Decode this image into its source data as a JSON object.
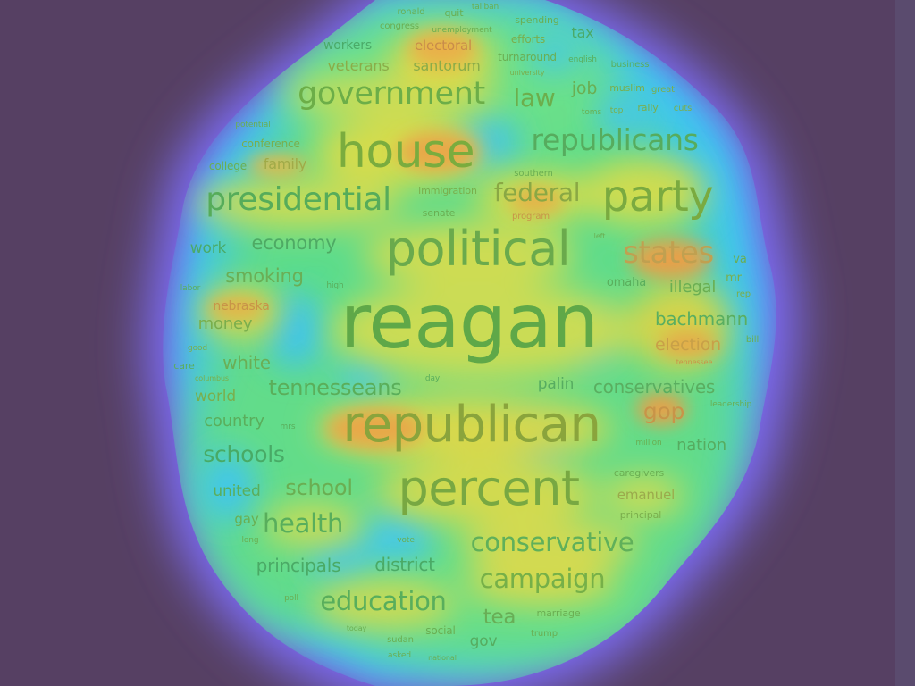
{
  "colors": {
    "background": "#564063",
    "glow_outer": "#7a6cf0",
    "heat_cyan": "#38c8f2",
    "heat_green": "#68e08a",
    "heat_yellow": "#d8d848",
    "heat_orange": "#e8a040",
    "text_green": "#52b45e",
    "text_olive": "#84b238",
    "text_teal": "#3ca894",
    "text_orange": "#d88c44"
  },
  "words": [
    {
      "text": "reagan",
      "color": "#5fa848"
    },
    {
      "text": "republican",
      "color": "#8aa43c"
    },
    {
      "text": "political",
      "color": "#6aaa4c"
    },
    {
      "text": "percent",
      "color": "#78a842"
    },
    {
      "text": "house",
      "color": "#7aac3e"
    },
    {
      "text": "government",
      "color": "#6cae48"
    },
    {
      "text": "presidential",
      "color": "#56ac5a"
    },
    {
      "text": "party",
      "color": "#7aaa40"
    },
    {
      "text": "republicans",
      "color": "#56ac5e"
    },
    {
      "text": "federal",
      "color": "#8aa844"
    },
    {
      "text": "states",
      "color": "#c0a050"
    },
    {
      "text": "conservative",
      "color": "#60b05a"
    },
    {
      "text": "campaign",
      "color": "#76b048"
    },
    {
      "text": "education",
      "color": "#58ae5c"
    },
    {
      "text": "law",
      "color": "#6cae4c"
    },
    {
      "text": "health",
      "color": "#58ae5c"
    },
    {
      "text": "school",
      "color": "#6aae52"
    },
    {
      "text": "schools",
      "color": "#48aa66"
    },
    {
      "text": "tennesseans",
      "color": "#5aae5a"
    },
    {
      "text": "conservatives",
      "color": "#5aae60"
    },
    {
      "text": "gop",
      "color": "#c89448"
    },
    {
      "text": "bachmann",
      "color": "#5aae60"
    },
    {
      "text": "election",
      "color": "#c8a048"
    },
    {
      "text": "economy",
      "color": "#4eaa64"
    },
    {
      "text": "smoking",
      "color": "#6aae56"
    },
    {
      "text": "principals",
      "color": "#4aaa66"
    },
    {
      "text": "district",
      "color": "#4aaa66"
    },
    {
      "text": "tea",
      "color": "#68ae56"
    },
    {
      "text": "white",
      "color": "#6aae56"
    },
    {
      "text": "money",
      "color": "#7aae4c"
    },
    {
      "text": "world",
      "color": "#7aae4c"
    },
    {
      "text": "country",
      "color": "#5aae5c"
    },
    {
      "text": "united",
      "color": "#5aae5c"
    },
    {
      "text": "nation",
      "color": "#56ac60"
    },
    {
      "text": "palin",
      "color": "#56ac60"
    },
    {
      "text": "illegal",
      "color": "#6aae52"
    },
    {
      "text": "job",
      "color": "#6aae52"
    },
    {
      "text": "tax",
      "color": "#4aaa68"
    },
    {
      "text": "work",
      "color": "#4aaa68"
    },
    {
      "text": "family",
      "color": "#a0aa48"
    },
    {
      "text": "veterans",
      "color": "#8aac48"
    },
    {
      "text": "santorum",
      "color": "#8aac48"
    },
    {
      "text": "electoral",
      "color": "#c88c4a"
    },
    {
      "text": "workers",
      "color": "#4aaa68"
    },
    {
      "text": "gov",
      "color": "#56ac60"
    },
    {
      "text": "gay",
      "color": "#6aae52"
    },
    {
      "text": "emanuel",
      "color": "#9aaa4c"
    },
    {
      "text": "nebraska",
      "color": "#c89448"
    },
    {
      "text": "omaha",
      "color": "#5aae5c"
    },
    {
      "text": "mr",
      "color": "#7aae4c"
    },
    {
      "text": "va",
      "color": "#6aae52"
    },
    {
      "text": "college",
      "color": "#6aae52"
    },
    {
      "text": "conference",
      "color": "#7aae4c"
    },
    {
      "text": "efforts",
      "color": "#7aae4c"
    },
    {
      "text": "turnaround",
      "color": "#6aae52"
    },
    {
      "text": "muslim",
      "color": "#7aae4c"
    },
    {
      "text": "rally",
      "color": "#7aae4c"
    },
    {
      "text": "immigration",
      "color": "#7aae4c"
    },
    {
      "text": "senate",
      "color": "#6aae52"
    },
    {
      "text": "program",
      "color": "#c89448"
    },
    {
      "text": "southern",
      "color": "#6aae52"
    },
    {
      "text": "spending",
      "color": "#6aae52"
    },
    {
      "text": "unemployment",
      "color": "#6aae52"
    },
    {
      "text": "congress",
      "color": "#6aae52"
    },
    {
      "text": "quit",
      "color": "#6aae52"
    },
    {
      "text": "ronald",
      "color": "#6aae52"
    },
    {
      "text": "taliban",
      "color": "#6aae52"
    },
    {
      "text": "english",
      "color": "#5aae5c"
    },
    {
      "text": "business",
      "color": "#5aae5c"
    },
    {
      "text": "great",
      "color": "#7aae4c"
    },
    {
      "text": "cuts",
      "color": "#7aae4c"
    },
    {
      "text": "top",
      "color": "#7aae4c"
    },
    {
      "text": "toms",
      "color": "#6aae52"
    },
    {
      "text": "university",
      "color": "#7aae4c"
    },
    {
      "text": "potential",
      "color": "#6aae52"
    },
    {
      "text": "labor",
      "color": "#5aae5c"
    },
    {
      "text": "high",
      "color": "#5aae5c"
    },
    {
      "text": "rep",
      "color": "#7aae4c"
    },
    {
      "text": "bill",
      "color": "#6aae52"
    },
    {
      "text": "tennessee",
      "color": "#c89448"
    },
    {
      "text": "leadership",
      "color": "#6aae52"
    },
    {
      "text": "good",
      "color": "#7aae4c"
    },
    {
      "text": "care",
      "color": "#5aae5c"
    },
    {
      "text": "columbus",
      "color": "#7aae4c"
    },
    {
      "text": "day",
      "color": "#5aae5c"
    },
    {
      "text": "mrs",
      "color": "#5aae5c"
    },
    {
      "text": "million",
      "color": "#6aae52"
    },
    {
      "text": "caregivers",
      "color": "#6aae52"
    },
    {
      "text": "principal",
      "color": "#7aae4c"
    },
    {
      "text": "long",
      "color": "#6aae52"
    },
    {
      "text": "vote",
      "color": "#6aae52"
    },
    {
      "text": "poll",
      "color": "#6aae52"
    },
    {
      "text": "marriage",
      "color": "#6aae52"
    },
    {
      "text": "social",
      "color": "#6aae52"
    },
    {
      "text": "trump",
      "color": "#6aae52"
    },
    {
      "text": "today",
      "color": "#6aae52"
    },
    {
      "text": "sudan",
      "color": "#6aae52"
    },
    {
      "text": "asked",
      "color": "#6aae52"
    },
    {
      "text": "national",
      "color": "#6aae52"
    },
    {
      "text": "left",
      "color": "#6aae52"
    }
  ]
}
